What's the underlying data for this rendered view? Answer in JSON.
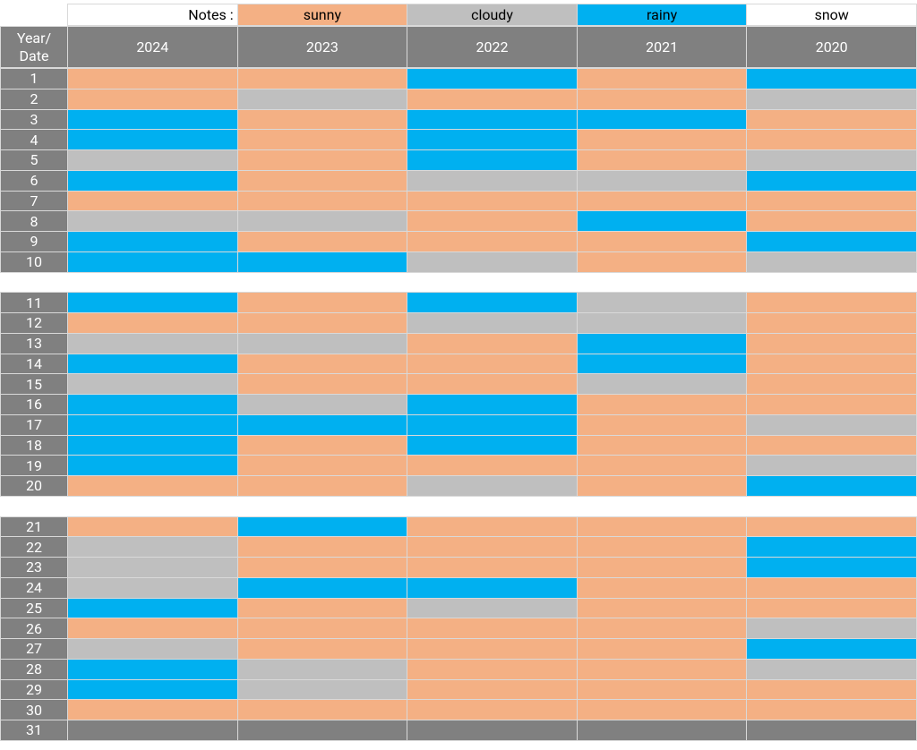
{
  "legend": {
    "label": "Notes :",
    "items": [
      {
        "name": "sunny",
        "color": "#f4b084"
      },
      {
        "name": "cloudy",
        "color": "#bfbfbf"
      },
      {
        "name": "rainy",
        "color": "#00b0f0"
      },
      {
        "name": "snow",
        "color": "#ffffff"
      }
    ]
  },
  "table": {
    "corner": "Year/ Date",
    "columns": [
      2024,
      2023,
      2022,
      2021,
      2020
    ],
    "groups": [
      {
        "rows": [
          {
            "date": 1,
            "weather": [
              "sunny",
              "sunny",
              "rainy",
              "sunny",
              "rainy"
            ]
          },
          {
            "date": 2,
            "weather": [
              "sunny",
              "cloudy",
              "sunny",
              "sunny",
              "cloudy"
            ]
          },
          {
            "date": 3,
            "weather": [
              "rainy",
              "sunny",
              "rainy",
              "rainy",
              "sunny"
            ]
          },
          {
            "date": 4,
            "weather": [
              "rainy",
              "sunny",
              "rainy",
              "sunny",
              "sunny"
            ]
          },
          {
            "date": 5,
            "weather": [
              "cloudy",
              "sunny",
              "rainy",
              "sunny",
              "cloudy"
            ]
          },
          {
            "date": 6,
            "weather": [
              "rainy",
              "sunny",
              "cloudy",
              "cloudy",
              "rainy"
            ]
          },
          {
            "date": 7,
            "weather": [
              "sunny",
              "sunny",
              "sunny",
              "sunny",
              "sunny"
            ]
          },
          {
            "date": 8,
            "weather": [
              "cloudy",
              "cloudy",
              "sunny",
              "rainy",
              "sunny"
            ]
          },
          {
            "date": 9,
            "weather": [
              "rainy",
              "sunny",
              "sunny",
              "sunny",
              "rainy"
            ]
          },
          {
            "date": 10,
            "weather": [
              "rainy",
              "rainy",
              "cloudy",
              "sunny",
              "cloudy"
            ]
          }
        ]
      },
      {
        "rows": [
          {
            "date": 11,
            "weather": [
              "rainy",
              "sunny",
              "rainy",
              "cloudy",
              "sunny"
            ]
          },
          {
            "date": 12,
            "weather": [
              "sunny",
              "sunny",
              "cloudy",
              "cloudy",
              "sunny"
            ]
          },
          {
            "date": 13,
            "weather": [
              "cloudy",
              "cloudy",
              "sunny",
              "rainy",
              "sunny"
            ]
          },
          {
            "date": 14,
            "weather": [
              "rainy",
              "sunny",
              "sunny",
              "rainy",
              "sunny"
            ]
          },
          {
            "date": 15,
            "weather": [
              "cloudy",
              "sunny",
              "sunny",
              "cloudy",
              "sunny"
            ]
          },
          {
            "date": 16,
            "weather": [
              "rainy",
              "cloudy",
              "rainy",
              "sunny",
              "sunny"
            ]
          },
          {
            "date": 17,
            "weather": [
              "rainy",
              "rainy",
              "rainy",
              "sunny",
              "cloudy"
            ]
          },
          {
            "date": 18,
            "weather": [
              "rainy",
              "sunny",
              "rainy",
              "sunny",
              "sunny"
            ]
          },
          {
            "date": 19,
            "weather": [
              "rainy",
              "sunny",
              "sunny",
              "sunny",
              "cloudy"
            ]
          },
          {
            "date": 20,
            "weather": [
              "sunny",
              "sunny",
              "cloudy",
              "sunny",
              "rainy"
            ]
          }
        ]
      },
      {
        "rows": [
          {
            "date": 21,
            "weather": [
              "sunny",
              "rainy",
              "sunny",
              "sunny",
              "sunny"
            ]
          },
          {
            "date": 22,
            "weather": [
              "cloudy",
              "sunny",
              "sunny",
              "sunny",
              "rainy"
            ]
          },
          {
            "date": 23,
            "weather": [
              "cloudy",
              "sunny",
              "sunny",
              "sunny",
              "rainy"
            ]
          },
          {
            "date": 24,
            "weather": [
              "cloudy",
              "rainy",
              "rainy",
              "sunny",
              "sunny"
            ]
          },
          {
            "date": 25,
            "weather": [
              "rainy",
              "sunny",
              "cloudy",
              "sunny",
              "sunny"
            ]
          },
          {
            "date": 26,
            "weather": [
              "sunny",
              "sunny",
              "sunny",
              "sunny",
              "cloudy"
            ]
          },
          {
            "date": 27,
            "weather": [
              "cloudy",
              "sunny",
              "sunny",
              "sunny",
              "rainy"
            ]
          },
          {
            "date": 28,
            "weather": [
              "rainy",
              "cloudy",
              "sunny",
              "sunny",
              "cloudy"
            ]
          },
          {
            "date": 29,
            "weather": [
              "rainy",
              "cloudy",
              "sunny",
              "sunny",
              "sunny"
            ]
          },
          {
            "date": 30,
            "weather": [
              "sunny",
              "sunny",
              "sunny",
              "sunny",
              "sunny"
            ]
          },
          {
            "date": 31,
            "weather": [
              null,
              null,
              null,
              null,
              null
            ]
          }
        ]
      }
    ]
  }
}
